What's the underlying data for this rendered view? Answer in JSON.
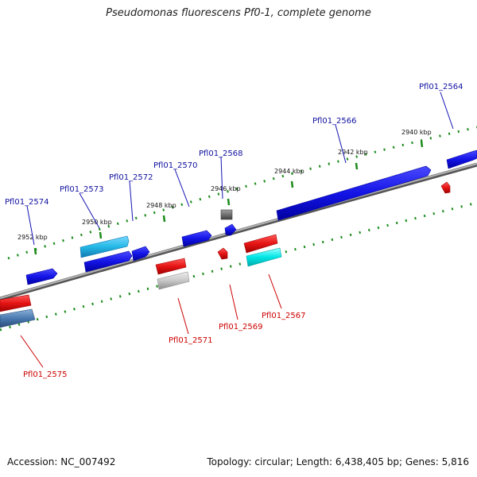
{
  "title": "Pseudomonas fluorescens Pf0-1, complete genome",
  "footer": {
    "accession": "Accession: NC_007492",
    "stats": "Topology: circular; Length: 6,438,405 bp; Genes: 5,816"
  },
  "colors": {
    "forward_label": "#1010a0",
    "reverse_label": "#cc0000",
    "backbone": "#8a8a8a",
    "ruler_ticks": "#1a8a1a"
  },
  "ticks": [
    {
      "label": "2940 kbp"
    },
    {
      "label": "2942 kbp"
    },
    {
      "label": "2944 kbp"
    },
    {
      "label": "2946 kbp"
    },
    {
      "label": "2948 kbp"
    },
    {
      "label": "2950 kbp"
    },
    {
      "label": "2952 kbp"
    }
  ],
  "genes": [
    {
      "label": "Pfl01_2564",
      "strand": "+",
      "color": "#1414e6"
    },
    {
      "label": "Pfl01_2566",
      "strand": "+",
      "color": "#1414e6"
    },
    {
      "label": "Pfl01_2567",
      "strand": "-",
      "color": "#00e6e6"
    },
    {
      "label": "Pfl01_2568",
      "strand": "+",
      "color": "#707070"
    },
    {
      "label": "Pfl01_2569",
      "strand": "-",
      "color": "#e61414"
    },
    {
      "label": "Pfl01_2570",
      "strand": "+",
      "color": "#1414e6"
    },
    {
      "label": "Pfl01_2571",
      "strand": "-",
      "color": "#c8c8c8"
    },
    {
      "label": "Pfl01_2572",
      "strand": "+",
      "color": "#1414e6"
    },
    {
      "label": "Pfl01_2573",
      "strand": "+",
      "color": "#24b8e6"
    },
    {
      "label": "Pfl01_2574",
      "strand": "+",
      "color": "#1414e6"
    },
    {
      "label": "Pfl01_2575",
      "strand": "-",
      "color": "#4a7ab0"
    }
  ]
}
